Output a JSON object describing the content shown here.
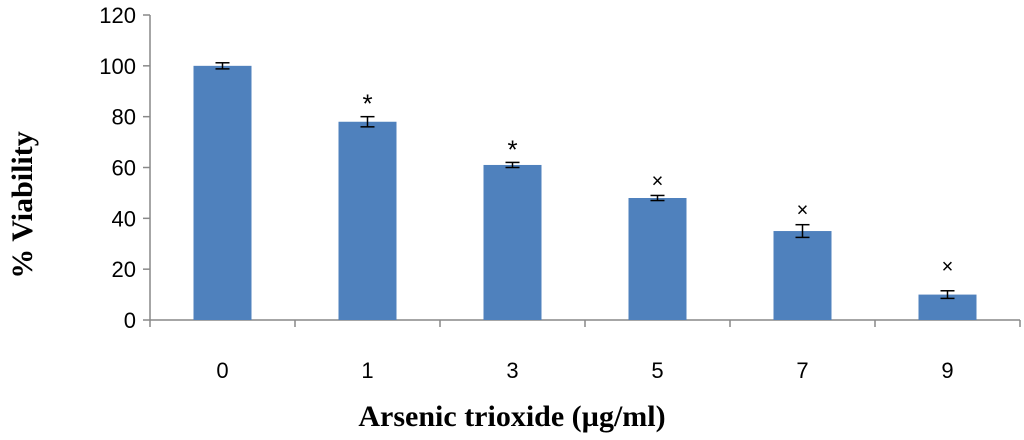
{
  "chart_data": {
    "type": "bar",
    "categories": [
      "0",
      "1",
      "3",
      "5",
      "7",
      "9"
    ],
    "values": [
      100,
      78,
      61,
      48,
      35,
      10
    ],
    "errors": [
      1.2,
      2.0,
      1.0,
      1.0,
      2.5,
      1.5
    ],
    "annotations": [
      "",
      "*",
      "*",
      "×",
      "×",
      "×"
    ],
    "xlabel": "Arsenic trioxide  (µg/ml)",
    "ylabel": "% Viability",
    "ylim": [
      0,
      120
    ],
    "yticks": [
      "0",
      "20",
      "40",
      "60",
      "80",
      "100",
      "120"
    ],
    "grid": false,
    "colors": {
      "bar": "#4f81bd",
      "axis": "#888888"
    }
  }
}
